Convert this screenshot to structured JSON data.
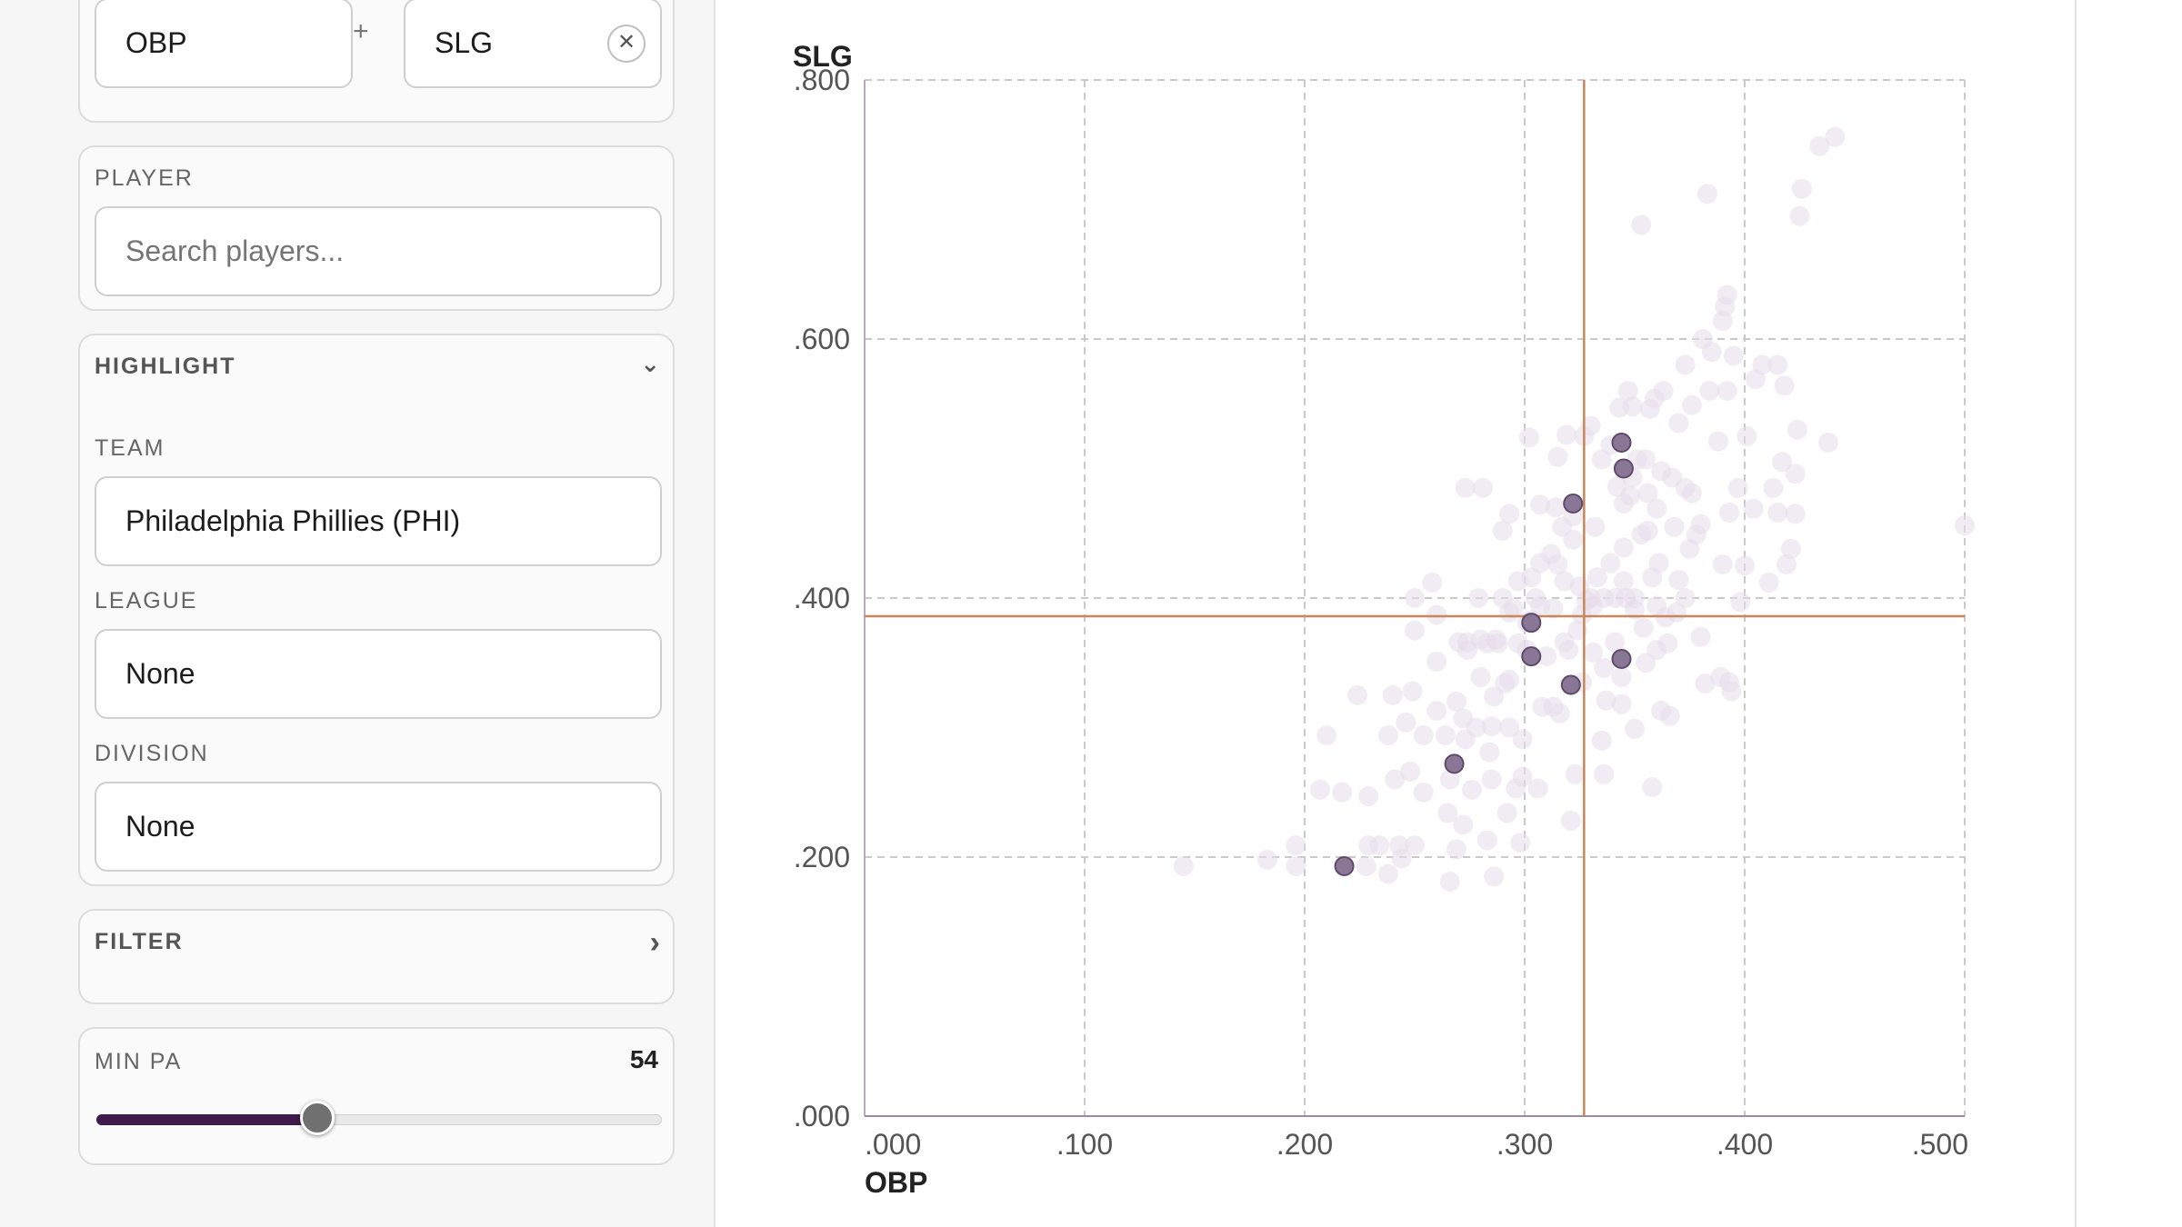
{
  "metrics": {
    "x_metric": "OBP",
    "operator": "+",
    "y_metric": "SLG",
    "clear_icon": "close-icon",
    "clear_symbol": "✕"
  },
  "player": {
    "label": "PLAYER",
    "placeholder": "Search players..."
  },
  "highlight": {
    "title": "HIGHLIGHT",
    "chevron_icon": "chevron-down-icon",
    "chevron_symbol": "⌄",
    "team_label": "TEAM",
    "team_value": "Philadelphia Phillies (PHI)",
    "league_label": "LEAGUE",
    "league_value": "None",
    "division_label": "DIVISION",
    "division_value": "None"
  },
  "filter": {
    "title": "FILTER",
    "chevron_icon": "chevron-right-icon",
    "chevron_symbol": "›"
  },
  "min_pa": {
    "label": "MIN PA",
    "value": "54",
    "fraction": 0.39
  },
  "colors": {
    "accent": "#3e1a4d",
    "highlight_point": "#8a7796",
    "faded_point": "#e6dde9",
    "average_line": "#c8865a",
    "grid": "#c9c9c9"
  },
  "chart_data": {
    "type": "scatter",
    "xlabel": "OBP",
    "ylabel": "SLG",
    "xlim": [
      0,
      0.5
    ],
    "ylim": [
      0,
      0.8
    ],
    "x_ticks": [
      0,
      0.1,
      0.2,
      0.3,
      0.4,
      0.5
    ],
    "x_tick_labels": [
      ".000",
      ".100",
      ".200",
      ".300",
      ".400",
      ".500"
    ],
    "y_ticks": [
      0,
      0.2,
      0.4,
      0.6,
      0.8
    ],
    "y_tick_labels": [
      ".000",
      ".200",
      ".400",
      ".600",
      ".800"
    ],
    "grid": true,
    "reference_lines": {
      "x": 0.327,
      "y": 0.386
    },
    "series": [
      {
        "highlighted": false,
        "points": [
          [
            0.145,
            0.193
          ],
          [
            0.183,
            0.198
          ],
          [
            0.196,
            0.209
          ],
          [
            0.196,
            0.193
          ],
          [
            0.207,
            0.252
          ],
          [
            0.21,
            0.294
          ],
          [
            0.217,
            0.25
          ],
          [
            0.224,
            0.325
          ],
          [
            0.228,
            0.193
          ],
          [
            0.229,
            0.247
          ],
          [
            0.229,
            0.209
          ],
          [
            0.234,
            0.209
          ],
          [
            0.238,
            0.294
          ],
          [
            0.238,
            0.187
          ],
          [
            0.24,
            0.325
          ],
          [
            0.241,
            0.26
          ],
          [
            0.243,
            0.209
          ],
          [
            0.244,
            0.199
          ],
          [
            0.246,
            0.304
          ],
          [
            0.248,
            0.266
          ],
          [
            0.249,
            0.328
          ],
          [
            0.25,
            0.375
          ],
          [
            0.25,
            0.4
          ],
          [
            0.25,
            0.209
          ],
          [
            0.254,
            0.294
          ],
          [
            0.254,
            0.25
          ],
          [
            0.258,
            0.412
          ],
          [
            0.26,
            0.387
          ],
          [
            0.26,
            0.351
          ],
          [
            0.26,
            0.313
          ],
          [
            0.264,
            0.294
          ],
          [
            0.265,
            0.234
          ],
          [
            0.266,
            0.181
          ],
          [
            0.266,
            0.26
          ],
          [
            0.269,
            0.32
          ],
          [
            0.269,
            0.206
          ],
          [
            0.27,
            0.366
          ],
          [
            0.272,
            0.225
          ],
          [
            0.272,
            0.307
          ],
          [
            0.273,
            0.485
          ],
          [
            0.273,
            0.291
          ],
          [
            0.274,
            0.366
          ],
          [
            0.274,
            0.36
          ],
          [
            0.276,
            0.252
          ],
          [
            0.278,
            0.3
          ],
          [
            0.279,
            0.4
          ],
          [
            0.28,
            0.368
          ],
          [
            0.28,
            0.339
          ],
          [
            0.281,
            0.485
          ],
          [
            0.283,
            0.213
          ],
          [
            0.283,
            0.365
          ],
          [
            0.284,
            0.281
          ],
          [
            0.285,
            0.26
          ],
          [
            0.285,
            0.301
          ],
          [
            0.286,
            0.185
          ],
          [
            0.286,
            0.324
          ],
          [
            0.287,
            0.368
          ],
          [
            0.288,
            0.365
          ],
          [
            0.29,
            0.452
          ],
          [
            0.29,
            0.4
          ],
          [
            0.291,
            0.334
          ],
          [
            0.292,
            0.234
          ],
          [
            0.293,
            0.337
          ],
          [
            0.293,
            0.389
          ],
          [
            0.293,
            0.465
          ],
          [
            0.293,
            0.3
          ],
          [
            0.295,
            0.392
          ],
          [
            0.296,
            0.253
          ],
          [
            0.297,
            0.413
          ],
          [
            0.297,
            0.365
          ],
          [
            0.298,
            0.211
          ],
          [
            0.299,
            0.262
          ],
          [
            0.299,
            0.291
          ],
          [
            0.301,
            0.381
          ],
          [
            0.301,
            0.36
          ],
          [
            0.302,
            0.524
          ],
          [
            0.303,
            0.416
          ],
          [
            0.303,
            0.383
          ],
          [
            0.305,
            0.4
          ],
          [
            0.306,
            0.253
          ],
          [
            0.307,
            0.472
          ],
          [
            0.307,
            0.427
          ],
          [
            0.307,
            0.394
          ],
          [
            0.308,
            0.316
          ],
          [
            0.31,
            0.355
          ],
          [
            0.312,
            0.434
          ],
          [
            0.313,
            0.316
          ],
          [
            0.313,
            0.392
          ],
          [
            0.314,
            0.47
          ],
          [
            0.315,
            0.426
          ],
          [
            0.315,
            0.509
          ],
          [
            0.316,
            0.311
          ],
          [
            0.317,
            0.455
          ],
          [
            0.318,
            0.366
          ],
          [
            0.318,
            0.413
          ],
          [
            0.319,
            0.526
          ],
          [
            0.32,
            0.36
          ],
          [
            0.321,
            0.228
          ],
          [
            0.322,
            0.463
          ],
          [
            0.322,
            0.445
          ],
          [
            0.323,
            0.264
          ],
          [
            0.324,
            0.375
          ],
          [
            0.325,
            0.409
          ],
          [
            0.326,
            0.335
          ],
          [
            0.326,
            0.387
          ],
          [
            0.327,
            0.525
          ],
          [
            0.328,
            0.398
          ],
          [
            0.33,
            0.4
          ],
          [
            0.33,
            0.533
          ],
          [
            0.331,
            0.394
          ],
          [
            0.331,
            0.358
          ],
          [
            0.332,
            0.455
          ],
          [
            0.333,
            0.416
          ],
          [
            0.335,
            0.29
          ],
          [
            0.335,
            0.507
          ],
          [
            0.336,
            0.346
          ],
          [
            0.336,
            0.4
          ],
          [
            0.336,
            0.264
          ],
          [
            0.337,
            0.321
          ],
          [
            0.339,
            0.427
          ],
          [
            0.339,
            0.518
          ],
          [
            0.341,
            0.4
          ],
          [
            0.341,
            0.366
          ],
          [
            0.342,
            0.486
          ],
          [
            0.343,
            0.547
          ],
          [
            0.344,
            0.339
          ],
          [
            0.344,
            0.318
          ],
          [
            0.345,
            0.413
          ],
          [
            0.345,
            0.439
          ],
          [
            0.345,
            0.473
          ],
          [
            0.346,
            0.4
          ],
          [
            0.347,
            0.56
          ],
          [
            0.348,
            0.479
          ],
          [
            0.349,
            0.493
          ],
          [
            0.349,
            0.548
          ],
          [
            0.35,
            0.4
          ],
          [
            0.35,
            0.391
          ],
          [
            0.35,
            0.299
          ],
          [
            0.351,
            0.507
          ],
          [
            0.353,
            0.688
          ],
          [
            0.353,
            0.449
          ],
          [
            0.354,
            0.377
          ],
          [
            0.355,
            0.507
          ],
          [
            0.355,
            0.35
          ],
          [
            0.356,
            0.481
          ],
          [
            0.356,
            0.452
          ],
          [
            0.357,
            0.546
          ],
          [
            0.358,
            0.416
          ],
          [
            0.358,
            0.254
          ],
          [
            0.359,
            0.554
          ],
          [
            0.36,
            0.36
          ],
          [
            0.36,
            0.469
          ],
          [
            0.36,
            0.394
          ],
          [
            0.361,
            0.427
          ],
          [
            0.362,
            0.313
          ],
          [
            0.362,
            0.498
          ],
          [
            0.363,
            0.56
          ],
          [
            0.364,
            0.385
          ],
          [
            0.365,
            0.365
          ],
          [
            0.366,
            0.309
          ],
          [
            0.367,
            0.493
          ],
          [
            0.368,
            0.455
          ],
          [
            0.369,
            0.389
          ],
          [
            0.37,
            0.535
          ],
          [
            0.37,
            0.414
          ],
          [
            0.373,
            0.485
          ],
          [
            0.373,
            0.58
          ],
          [
            0.373,
            0.4
          ],
          [
            0.375,
            0.438
          ],
          [
            0.376,
            0.481
          ],
          [
            0.376,
            0.549
          ],
          [
            0.378,
            0.449
          ],
          [
            0.38,
            0.457
          ],
          [
            0.38,
            0.37
          ],
          [
            0.381,
            0.6
          ],
          [
            0.382,
            0.334
          ],
          [
            0.383,
            0.712
          ],
          [
            0.384,
            0.56
          ],
          [
            0.385,
            0.59
          ],
          [
            0.388,
            0.521
          ],
          [
            0.389,
            0.339
          ],
          [
            0.39,
            0.614
          ],
          [
            0.39,
            0.426
          ],
          [
            0.391,
            0.625
          ],
          [
            0.392,
            0.634
          ],
          [
            0.392,
            0.56
          ],
          [
            0.393,
            0.466
          ],
          [
            0.393,
            0.335
          ],
          [
            0.394,
            0.328
          ],
          [
            0.395,
            0.587
          ],
          [
            0.397,
            0.485
          ],
          [
            0.398,
            0.397
          ],
          [
            0.4,
            0.425
          ],
          [
            0.401,
            0.525
          ],
          [
            0.404,
            0.469
          ],
          [
            0.405,
            0.569
          ],
          [
            0.408,
            0.58
          ],
          [
            0.411,
            0.412
          ],
          [
            0.413,
            0.485
          ],
          [
            0.415,
            0.466
          ],
          [
            0.415,
            0.58
          ],
          [
            0.417,
            0.505
          ],
          [
            0.418,
            0.564
          ],
          [
            0.419,
            0.426
          ],
          [
            0.421,
            0.438
          ],
          [
            0.423,
            0.496
          ],
          [
            0.423,
            0.465
          ],
          [
            0.424,
            0.53
          ],
          [
            0.425,
            0.695
          ],
          [
            0.426,
            0.716
          ],
          [
            0.434,
            0.749
          ],
          [
            0.438,
            0.52
          ],
          [
            0.441,
            0.756
          ],
          [
            0.5,
            0.456
          ]
        ]
      },
      {
        "highlighted": true,
        "points": [
          [
            0.218,
            0.193
          ],
          [
            0.268,
            0.272
          ],
          [
            0.303,
            0.381
          ],
          [
            0.303,
            0.355
          ],
          [
            0.321,
            0.333
          ],
          [
            0.322,
            0.473
          ],
          [
            0.344,
            0.52
          ],
          [
            0.345,
            0.5
          ],
          [
            0.344,
            0.353
          ]
        ]
      }
    ]
  }
}
